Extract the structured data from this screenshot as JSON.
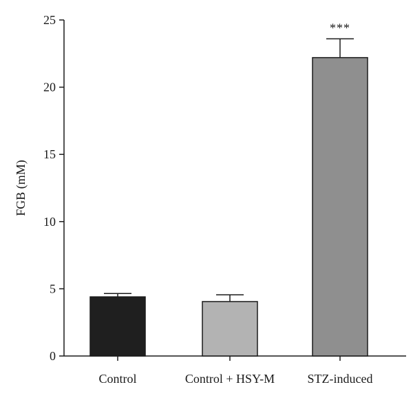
{
  "chart_data": {
    "type": "bar",
    "title": "",
    "xlabel": "",
    "ylabel": "FGB (mM)",
    "ylim": [
      0,
      25
    ],
    "yticks": [
      0,
      5,
      10,
      15,
      20,
      25
    ],
    "grid": false,
    "legend": "none",
    "categories": [
      "Control",
      "Control + HSY-M",
      "STZ-induced"
    ],
    "values": [
      4.4,
      4.05,
      22.2
    ],
    "errors": [
      0.25,
      0.5,
      1.4
    ],
    "colors": [
      "#1f1f1f",
      "#b3b3b3",
      "#8f8f8f"
    ],
    "annotations": [
      "",
      "",
      "***"
    ]
  }
}
